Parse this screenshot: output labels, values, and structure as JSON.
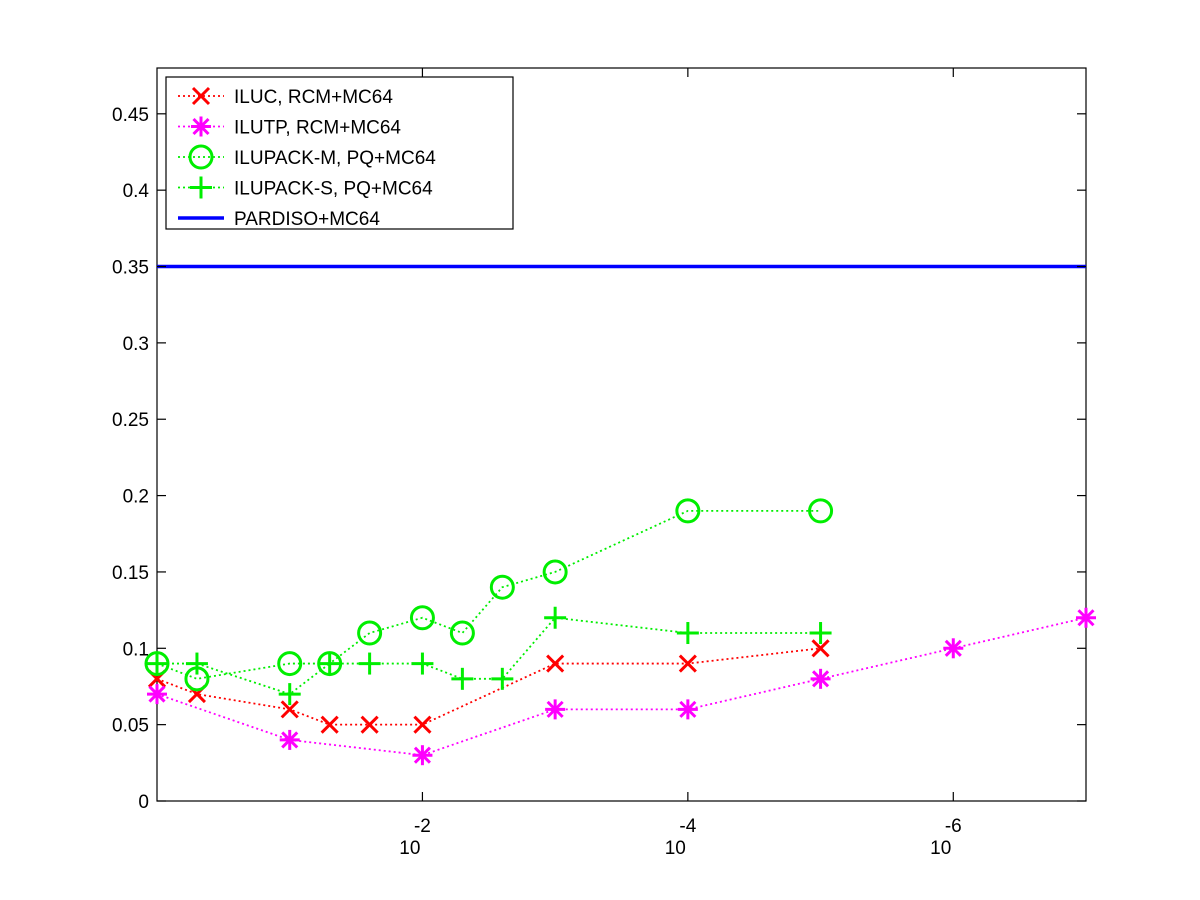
{
  "chart_data": {
    "type": "line",
    "title": "",
    "xlabel": "",
    "ylabel": "",
    "x_scale": "log",
    "x_reversed": true,
    "xlim": [
      1,
      1e-07
    ],
    "ylim": [
      0,
      0.48
    ],
    "y_ticks": [
      0,
      0.05,
      0.1,
      0.15,
      0.2,
      0.25,
      0.3,
      0.35,
      0.4,
      0.45
    ],
    "y_tick_labels": [
      "0",
      "0.05",
      "0.1",
      "0.15",
      "0.2",
      "0.25",
      "0.3",
      "0.35",
      "0.4",
      "0.45"
    ],
    "x_ticks": [
      {
        "value": 0.01,
        "base": "10",
        "exponent": "-2"
      },
      {
        "value": 0.0001,
        "base": "10",
        "exponent": "-4"
      },
      {
        "value": 1e-06,
        "base": "10",
        "exponent": "-6"
      }
    ],
    "grid": false,
    "legend_position": "top-left",
    "series": [
      {
        "name": "ILUC, RCM+MC64",
        "color": "#ff0000",
        "marker": "x",
        "linestyle": "dotted",
        "x": [
          1,
          0.5,
          0.1,
          0.05,
          0.025,
          0.01,
          0.005,
          0.001,
          0.0001,
          1e-05
        ],
        "y": [
          0.08,
          0.07,
          0.06,
          0.05,
          0.05,
          0.05,
          null,
          0.09,
          0.09,
          0.1
        ]
      },
      {
        "name": "ILUTP, RCM+MC64",
        "color": "#ff00ff",
        "marker": "asterisk",
        "linestyle": "dotted",
        "x": [
          1,
          0.1,
          0.01,
          0.001,
          0.0001,
          1e-05,
          1e-06,
          1e-07
        ],
        "y": [
          0.07,
          0.04,
          0.03,
          0.06,
          0.06,
          0.08,
          0.1,
          0.12
        ]
      },
      {
        "name": "ILUPACK-M, PQ+MC64",
        "color": "#00ee00",
        "marker": "circle",
        "linestyle": "dotted",
        "x": [
          1,
          0.5,
          0.1,
          0.05,
          0.025,
          0.01,
          0.005,
          0.0025,
          0.001,
          0.0001,
          1e-05
        ],
        "y": [
          0.09,
          0.08,
          0.09,
          0.09,
          0.11,
          0.12,
          0.11,
          0.14,
          0.15,
          0.19,
          0.19
        ]
      },
      {
        "name": "ILUPACK-S, PQ+MC64",
        "color": "#00ee00",
        "marker": "plus",
        "linestyle": "dotted",
        "x": [
          1,
          0.5,
          0.1,
          0.05,
          0.025,
          0.01,
          0.005,
          0.0025,
          0.001,
          0.0001,
          1e-05
        ],
        "y": [
          0.09,
          0.09,
          0.07,
          0.09,
          0.09,
          0.09,
          0.08,
          0.08,
          0.12,
          0.11,
          0.11
        ]
      },
      {
        "name": "PARDISO+MC64",
        "color": "#0000ff",
        "marker": "none",
        "linestyle": "solid",
        "x": [
          1,
          1e-07
        ],
        "y": [
          0.35,
          0.35
        ]
      }
    ]
  }
}
